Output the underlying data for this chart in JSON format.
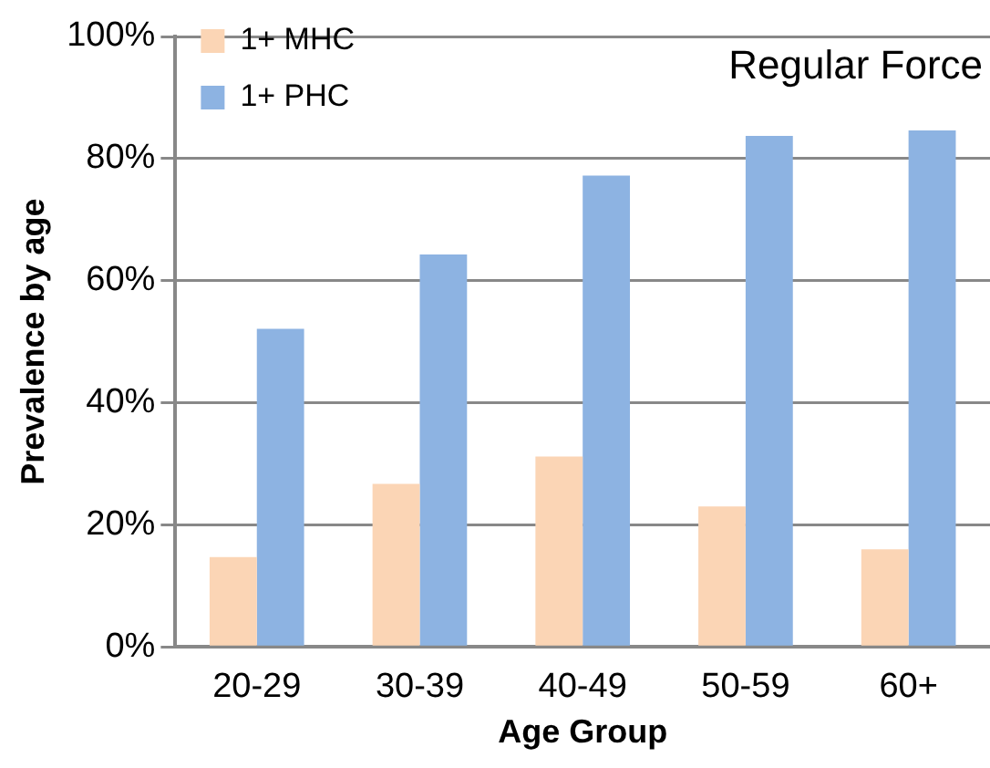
{
  "chart_data": {
    "type": "bar",
    "title": "Regular Force",
    "xlabel": "Age Group",
    "ylabel": "Prevalence by age",
    "categories": [
      "20-29",
      "30-39",
      "40-49",
      "50-59",
      "60+"
    ],
    "series": [
      {
        "name": "1+ MHC",
        "color": "#fbd5b5",
        "values": [
          14.7,
          26.7,
          31.2,
          23.0,
          16.0
        ]
      },
      {
        "name": "1+ PHC",
        "color": "#8db3e2",
        "values": [
          52.1,
          64.3,
          77.2,
          83.7,
          84.6
        ]
      }
    ],
    "ylim": [
      0,
      100
    ],
    "yticks": [
      {
        "value": 0,
        "label": "0%"
      },
      {
        "value": 20,
        "label": "20%"
      },
      {
        "value": 40,
        "label": "40%"
      },
      {
        "value": 60,
        "label": "60%"
      },
      {
        "value": 80,
        "label": "80%"
      },
      {
        "value": 100,
        "label": "100%"
      }
    ],
    "grid": "y",
    "legend": "top left"
  }
}
